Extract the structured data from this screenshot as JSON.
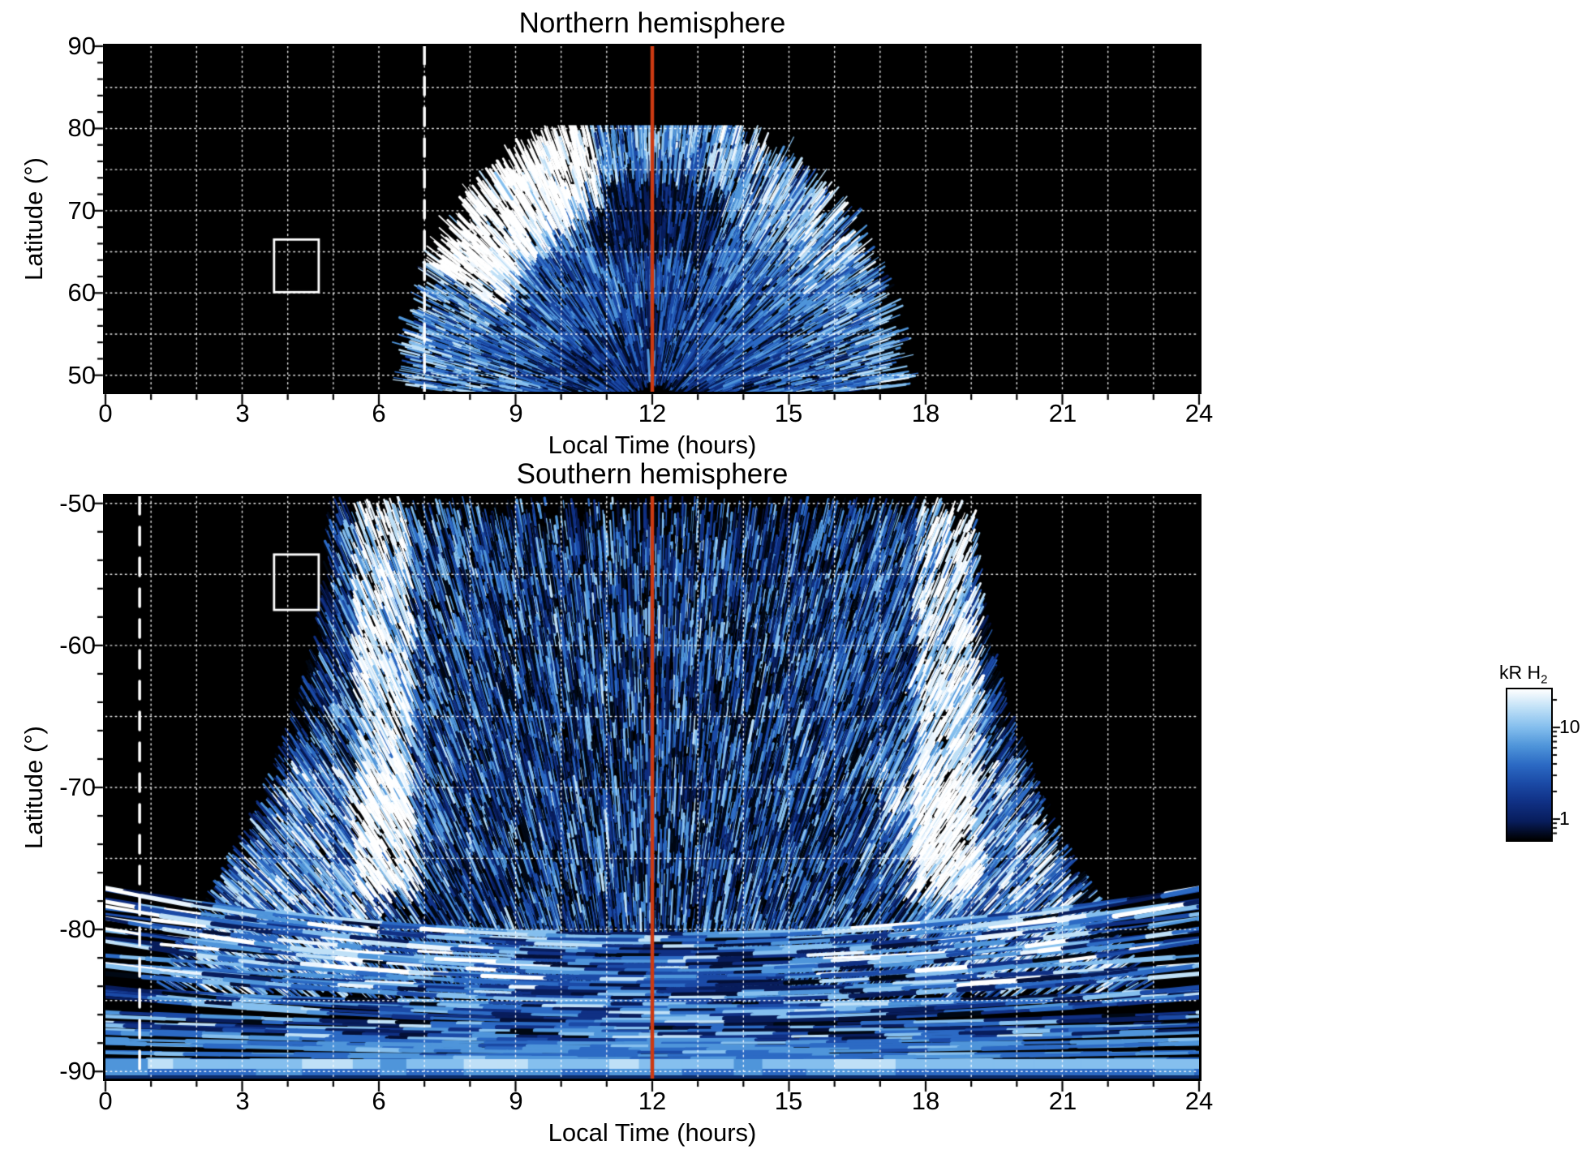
{
  "chart_data": [
    {
      "type": "heatmap",
      "title": "Northern hemisphere",
      "xlabel": "Local Time (hours)",
      "ylabel": "Latitude (°)",
      "xlim": [
        0,
        24
      ],
      "ylim": [
        48,
        90
      ],
      "x_tick_labels": [
        "0",
        "3",
        "6",
        "9",
        "12",
        "15",
        "18",
        "21",
        "24"
      ],
      "y_tick_labels": [
        "90",
        "80",
        "70",
        "60",
        "50"
      ],
      "grid": {
        "style": "white dotted",
        "x_step_hours": 1,
        "y_step_deg": 5
      },
      "annotations": {
        "noon_line": {
          "hour": 12,
          "color": "#cc3a12",
          "style": "solid"
        },
        "dashed_line": {
          "hour": 7,
          "color": "#ffffff",
          "style": "dashed"
        },
        "box": {
          "hours": [
            3.7,
            4.68
          ],
          "lat": [
            66.5,
            60.1
          ],
          "color": "#ffffff"
        }
      },
      "emission": {
        "units": "kR H2",
        "extent_hours": [
          6.8,
          17.2
        ],
        "extent_lat": [
          50,
          80
        ],
        "bright_arc": {
          "hours": [
            8.3,
            11.5
          ],
          "lat": [
            67,
            77
          ],
          "peak_kR": ">10"
        },
        "description": "Streaky dome of H2 auroral emission centred on local noon spanning ~7-17 h and 50-80 deg; brightest white arc on the morning flank, dark patchy core near noon at 55-67 deg, black (no emission) on the nightside."
      }
    },
    {
      "type": "heatmap",
      "title": "Southern hemisphere",
      "xlabel": "Local Time (hours)",
      "ylabel": "Latitude (°)",
      "xlim": [
        0,
        24
      ],
      "ylim": [
        -90.5,
        -49.5
      ],
      "x_tick_labels": [
        "0",
        "3",
        "6",
        "9",
        "12",
        "15",
        "18",
        "21",
        "24"
      ],
      "y_tick_labels": [
        "-50",
        "-60",
        "-70",
        "-80",
        "-90"
      ],
      "grid": {
        "style": "white dotted",
        "x_step_hours": 1,
        "y_step_deg": 5
      },
      "annotations": {
        "noon_line": {
          "hour": 12,
          "color": "#cc3a12",
          "style": "solid"
        },
        "dashed_line": {
          "hour": 0.75,
          "color": "#ffffff",
          "style": "dashed"
        },
        "box": {
          "hours": [
            3.7,
            4.68
          ],
          "lat": [
            -53.6,
            -57.5
          ],
          "color": "#ffffff"
        }
      },
      "emission": {
        "units": "kR H2",
        "extent_hours": [
          0,
          24
        ],
        "extent_lat": [
          -50,
          -90
        ],
        "bright_columns_hours": [
          6,
          18.6
        ],
        "description": "Fan of streaky emission widening from ~5-19 h at -50 deg to all local times below -80 deg; bright white columns near 6 h and 18.5 h, layered arcs and smooth bright bands below -82 deg, black outside the fan."
      }
    }
  ],
  "colorbar": {
    "label": "kR H",
    "label_sub": "2",
    "scale": "log",
    "tick_labels": [
      "10",
      "1"
    ],
    "colormap": [
      "#000000",
      "#081d5c",
      "#103084",
      "#1b4aa6",
      "#2c6ac4",
      "#4f95da",
      "#85bfee",
      "#bfe0f7",
      "#ffffff"
    ]
  }
}
